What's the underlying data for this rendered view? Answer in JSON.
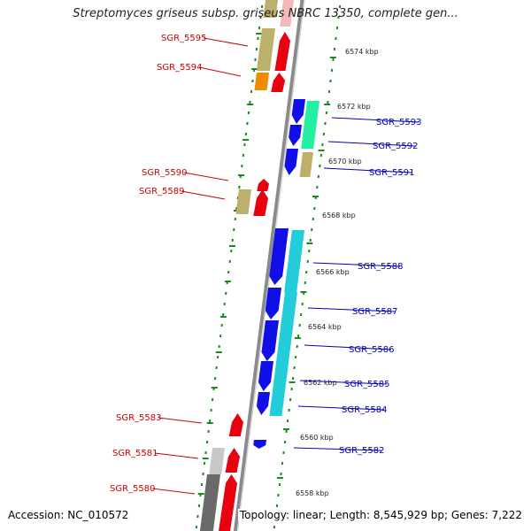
{
  "title": "Streptomyces griseus subsp. griseus NBRC 13350, complete gen...",
  "accession": "Accession: NC_010572",
  "summary": "Topology: linear; Length: 8,545,929 bp; Genes: 7,222",
  "colors": {
    "red": "#e8000f",
    "blue": "#1010e6",
    "khaki": "#bdb06d",
    "orange": "#f08a00",
    "spring": "#22f0a0",
    "cyan": "#22ccd8",
    "lightgray": "#c8c8c8",
    "darkgray": "#6a6a6a",
    "dot": "#1a8a1a",
    "label_red": "#cc0000",
    "label_blue": "#0000bb"
  },
  "kbp_ticks": [
    "6574 kbp",
    "6572 kbp",
    "6570 kbp",
    "6568 kbp",
    "6566 kbp",
    "6564 kbp",
    "6562 kbp",
    "6560 kbp",
    "6558 kbp"
  ],
  "genes_left": [
    "SGR_5595",
    "SGR_5594",
    "SGR_5590",
    "SGR_5589",
    "SGR_5583",
    "SGR_5581",
    "SGR_5580"
  ],
  "genes_right": [
    "SGR_5593",
    "SGR_5592",
    "SGR_5591",
    "SGR_5588",
    "SGR_5587",
    "SGR_5586",
    "SGR_5585",
    "SGR_5584",
    "SGR_5582"
  ]
}
